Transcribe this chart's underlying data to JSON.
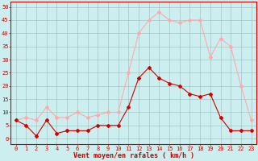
{
  "hours": [
    0,
    1,
    2,
    3,
    4,
    5,
    6,
    7,
    8,
    9,
    10,
    11,
    12,
    13,
    14,
    15,
    16,
    17,
    18,
    19,
    20,
    21,
    22,
    23
  ],
  "wind_avg": [
    7,
    5,
    1,
    7,
    2,
    3,
    3,
    3,
    5,
    5,
    5,
    12,
    23,
    27,
    23,
    21,
    20,
    17,
    16,
    17,
    8,
    3,
    3,
    3
  ],
  "wind_gust": [
    7,
    8,
    7,
    12,
    8,
    8,
    10,
    8,
    9,
    10,
    10,
    25,
    40,
    45,
    48,
    45,
    44,
    45,
    45,
    31,
    38,
    35,
    20,
    7
  ],
  "avg_color": "#cc0000",
  "gust_color": "#ffaaaa",
  "bg_color": "#cceeee",
  "grid_color": "#99bbbb",
  "xlabel": "Vent moyen/en rafales ( km/h )",
  "yticks": [
    0,
    5,
    10,
    15,
    20,
    25,
    30,
    35,
    40,
    45,
    50
  ],
  "ylim": [
    -2,
    52
  ],
  "xlim": [
    -0.5,
    23.5
  ],
  "spine_color": "#cc0000",
  "tick_label_color_x": "#cc0000",
  "tick_label_color_y": "#cc0000",
  "xlabel_color": "#cc0000",
  "xlabel_fontsize": 6,
  "tick_fontsize": 5,
  "marker": "D",
  "markersize": 2,
  "linewidth": 0.8
}
